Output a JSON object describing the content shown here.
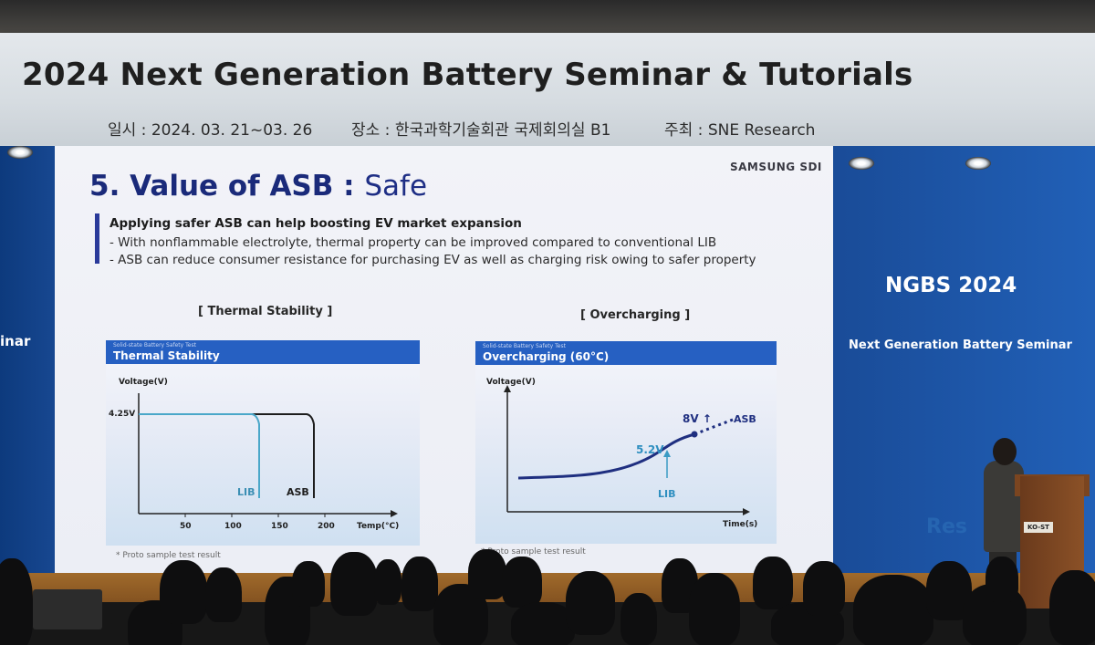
{
  "banner": {
    "title": "2024 Next Generation Battery Seminar & Tutorials",
    "date": "일시 : 2024. 03. 21~03. 26",
    "venue": "장소 : 한국과학기술회관 국제회의실 B1",
    "host": "주최 : SNE Research"
  },
  "screen": {
    "left_edge_text": "inar",
    "ngbs_title": "NGBS 2024",
    "ngbs_subtitle": "Next Generation Battery Seminar",
    "brand_partial": "Res",
    "podium_badge": "KO-ST"
  },
  "slide": {
    "logo": "SAMSUNG SDI",
    "title_bold": "5. Value of ASB",
    "title_colon": " : ",
    "title_light": "Safe",
    "headline": "Applying safer ASB can help boosting EV market expansion",
    "bullet1": "- With nonflammable electrolyte, thermal property can be improved compared to conventional LIB",
    "bullet2": "- ASB can reduce consumer resistance for purchasing EV as well as charging risk owing to safer property",
    "chart1": {
      "caption": "[ Thermal Stability ]",
      "small_header": "Solid-state Battery Safety Test",
      "header": "Thermal Stability",
      "ylabel": "Voltage(V)",
      "xlabel": "Temp(°C)",
      "ytick": "4.25V",
      "xticks": [
        "50",
        "100",
        "150",
        "200"
      ],
      "series_lib": "LIB",
      "series_asb": "ASB",
      "footnote": "* Proto sample test result"
    },
    "chart2": {
      "caption": "[ Overcharging ]",
      "small_header": "Solid-state Battery Safety Test",
      "header": "Overcharging (60°C)",
      "ylabel": "Voltage(V)",
      "xlabel": "Time(s)",
      "label_lib_v": "5.2V",
      "label_asb_v": "8V ↑",
      "series_lib": "LIB",
      "series_asb": "ASB",
      "footnote": "* Proto sample test result"
    }
  }
}
